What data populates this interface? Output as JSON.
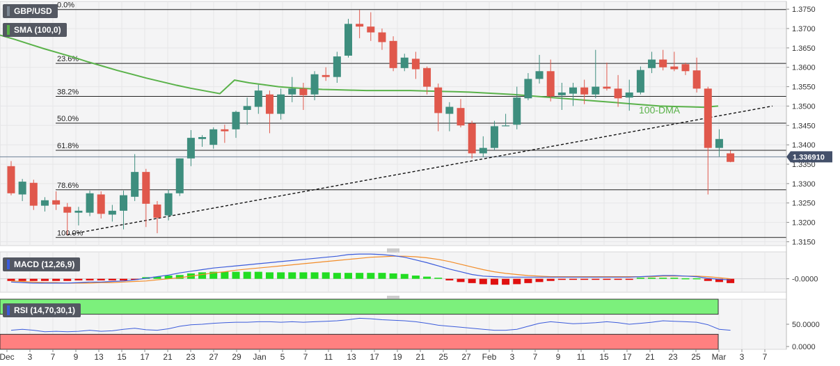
{
  "chart_data": {
    "type": "candlestick",
    "symbol": "GBP/USD",
    "sma_label": "SMA (100,0)",
    "sma_annotation": "100-DMA",
    "current_price_label": "1.336910",
    "current_price": 1.33691,
    "y_ticks": [
      "1.3750",
      "1.3700",
      "1.3650",
      "1.3600",
      "1.3550",
      "1.3500",
      "1.3450",
      "1.3400",
      "1.3350",
      "1.3300",
      "1.3250",
      "1.3200",
      "1.3150"
    ],
    "ylim": [
      1.314,
      1.377
    ],
    "x_ticks": [
      "Dec",
      "3",
      "7",
      "9",
      "13",
      "15",
      "17",
      "21",
      "23",
      "27",
      "29",
      "Jan",
      "5",
      "7",
      "11",
      "13",
      "17",
      "19",
      "21",
      "25",
      "27",
      "Feb",
      "3",
      "7",
      "9",
      "11",
      "15",
      "17",
      "21",
      "23",
      "25",
      "Mar",
      "3",
      "7"
    ],
    "fibonacci": [
      {
        "label": "0.0%",
        "price": 1.3749
      },
      {
        "label": "23.6%",
        "price": 1.361
      },
      {
        "label": "38.2%",
        "price": 1.3525
      },
      {
        "label": "50.0%",
        "price": 1.3456
      },
      {
        "label": "61.8%",
        "price": 1.3386
      },
      {
        "label": "78.6%",
        "price": 1.3284
      },
      {
        "label": "100.0%",
        "price": 1.3161
      }
    ],
    "candles": [
      {
        "o": 1.3345,
        "h": 1.3358,
        "l": 1.327,
        "c": 1.3275
      },
      {
        "o": 1.3272,
        "h": 1.3312,
        "l": 1.3255,
        "c": 1.3305
      },
      {
        "o": 1.3302,
        "h": 1.331,
        "l": 1.3232,
        "c": 1.3243
      },
      {
        "o": 1.3243,
        "h": 1.3265,
        "l": 1.3228,
        "c": 1.3257
      },
      {
        "o": 1.3257,
        "h": 1.328,
        "l": 1.3232,
        "c": 1.3246
      },
      {
        "o": 1.324,
        "h": 1.325,
        "l": 1.3168,
        "c": 1.3225
      },
      {
        "o": 1.3225,
        "h": 1.324,
        "l": 1.3192,
        "c": 1.323
      },
      {
        "o": 1.3225,
        "h": 1.3282,
        "l": 1.3216,
        "c": 1.3275
      },
      {
        "o": 1.3272,
        "h": 1.328,
        "l": 1.321,
        "c": 1.3222
      },
      {
        "o": 1.322,
        "h": 1.3245,
        "l": 1.3202,
        "c": 1.323
      },
      {
        "o": 1.323,
        "h": 1.3282,
        "l": 1.3182,
        "c": 1.327
      },
      {
        "o": 1.3266,
        "h": 1.3376,
        "l": 1.3255,
        "c": 1.333
      },
      {
        "o": 1.333,
        "h": 1.3338,
        "l": 1.3188,
        "c": 1.3248
      },
      {
        "o": 1.3246,
        "h": 1.3255,
        "l": 1.3172,
        "c": 1.3212
      },
      {
        "o": 1.3218,
        "h": 1.3285,
        "l": 1.3205,
        "c": 1.3275
      },
      {
        "o": 1.3275,
        "h": 1.3365,
        "l": 1.3268,
        "c": 1.3365
      },
      {
        "o": 1.3365,
        "h": 1.3438,
        "l": 1.3345,
        "c": 1.3418
      },
      {
        "o": 1.3415,
        "h": 1.3425,
        "l": 1.3395,
        "c": 1.342
      },
      {
        "o": 1.34,
        "h": 1.3445,
        "l": 1.339,
        "c": 1.344
      },
      {
        "o": 1.344,
        "h": 1.3452,
        "l": 1.3405,
        "c": 1.3435
      },
      {
        "o": 1.344,
        "h": 1.3488,
        "l": 1.3418,
        "c": 1.3485
      },
      {
        "o": 1.349,
        "h": 1.3522,
        "l": 1.3452,
        "c": 1.35
      },
      {
        "o": 1.3498,
        "h": 1.3555,
        "l": 1.348,
        "c": 1.354
      },
      {
        "o": 1.353,
        "h": 1.354,
        "l": 1.343,
        "c": 1.348
      },
      {
        "o": 1.348,
        "h": 1.3545,
        "l": 1.3465,
        "c": 1.353
      },
      {
        "o": 1.353,
        "h": 1.3575,
        "l": 1.351,
        "c": 1.3545
      },
      {
        "o": 1.3545,
        "h": 1.356,
        "l": 1.349,
        "c": 1.3528
      },
      {
        "o": 1.353,
        "h": 1.359,
        "l": 1.3515,
        "c": 1.3582
      },
      {
        "o": 1.358,
        "h": 1.36,
        "l": 1.3565,
        "c": 1.3575
      },
      {
        "o": 1.3575,
        "h": 1.364,
        "l": 1.356,
        "c": 1.3628
      },
      {
        "o": 1.363,
        "h": 1.3725,
        "l": 1.3625,
        "c": 1.3712
      },
      {
        "o": 1.3712,
        "h": 1.3748,
        "l": 1.3675,
        "c": 1.3705
      },
      {
        "o": 1.3705,
        "h": 1.3742,
        "l": 1.3668,
        "c": 1.369
      },
      {
        "o": 1.369,
        "h": 1.37,
        "l": 1.3645,
        "c": 1.3665
      },
      {
        "o": 1.3668,
        "h": 1.368,
        "l": 1.359,
        "c": 1.3598
      },
      {
        "o": 1.3598,
        "h": 1.3635,
        "l": 1.359,
        "c": 1.3625
      },
      {
        "o": 1.3622,
        "h": 1.364,
        "l": 1.357,
        "c": 1.3595
      },
      {
        "o": 1.3598,
        "h": 1.3602,
        "l": 1.353,
        "c": 1.355
      },
      {
        "o": 1.3548,
        "h": 1.3558,
        "l": 1.3435,
        "c": 1.3482
      },
      {
        "o": 1.348,
        "h": 1.351,
        "l": 1.3435,
        "c": 1.3498
      },
      {
        "o": 1.3495,
        "h": 1.3518,
        "l": 1.3445,
        "c": 1.345
      },
      {
        "o": 1.3455,
        "h": 1.3462,
        "l": 1.3365,
        "c": 1.3378
      },
      {
        "o": 1.3378,
        "h": 1.3422,
        "l": 1.3368,
        "c": 1.3392
      },
      {
        "o": 1.3392,
        "h": 1.3462,
        "l": 1.3386,
        "c": 1.3448
      },
      {
        "o": 1.345,
        "h": 1.348,
        "l": 1.3448,
        "c": 1.345
      },
      {
        "o": 1.3452,
        "h": 1.355,
        "l": 1.344,
        "c": 1.3522
      },
      {
        "o": 1.352,
        "h": 1.3585,
        "l": 1.3515,
        "c": 1.357
      },
      {
        "o": 1.357,
        "h": 1.3632,
        "l": 1.3558,
        "c": 1.359
      },
      {
        "o": 1.359,
        "h": 1.362,
        "l": 1.3512,
        "c": 1.3525
      },
      {
        "o": 1.3528,
        "h": 1.356,
        "l": 1.349,
        "c": 1.3535
      },
      {
        "o": 1.3532,
        "h": 1.356,
        "l": 1.35,
        "c": 1.3548
      },
      {
        "o": 1.3548,
        "h": 1.3568,
        "l": 1.3505,
        "c": 1.353
      },
      {
        "o": 1.353,
        "h": 1.3645,
        "l": 1.352,
        "c": 1.355
      },
      {
        "o": 1.355,
        "h": 1.3612,
        "l": 1.354,
        "c": 1.3545
      },
      {
        "o": 1.3545,
        "h": 1.358,
        "l": 1.3498,
        "c": 1.352
      },
      {
        "o": 1.3522,
        "h": 1.3568,
        "l": 1.3488,
        "c": 1.3535
      },
      {
        "o": 1.3535,
        "h": 1.3602,
        "l": 1.353,
        "c": 1.3593
      },
      {
        "o": 1.3598,
        "h": 1.364,
        "l": 1.3585,
        "c": 1.362
      },
      {
        "o": 1.362,
        "h": 1.3645,
        "l": 1.3592,
        "c": 1.36
      },
      {
        "o": 1.3602,
        "h": 1.364,
        "l": 1.359,
        "c": 1.3595
      },
      {
        "o": 1.3608,
        "h": 1.3612,
        "l": 1.358,
        "c": 1.359
      },
      {
        "o": 1.3592,
        "h": 1.3625,
        "l": 1.3535,
        "c": 1.3545
      },
      {
        "o": 1.3545,
        "h": 1.355,
        "l": 1.3272,
        "c": 1.3392
      },
      {
        "o": 1.3392,
        "h": 1.344,
        "l": 1.337,
        "c": 1.3415
      },
      {
        "o": 1.3378,
        "h": 1.3385,
        "l": 1.3355,
        "c": 1.3356
      }
    ],
    "sma": [
      1.3683,
      1.3672,
      1.366,
      1.3648,
      1.3637,
      1.3626,
      1.3614,
      1.3603,
      1.3592,
      1.3582,
      1.3572,
      1.3563,
      1.3554,
      1.3546,
      1.3539,
      1.3532,
      1.3567,
      1.356,
      1.3555,
      1.355,
      1.3547,
      1.3545,
      1.3543,
      1.3542,
      1.3541,
      1.354,
      1.354,
      1.354,
      1.354,
      1.3539,
      1.3538,
      1.3537,
      1.3536,
      1.3534,
      1.3532,
      1.353,
      1.3527,
      1.3524,
      1.3521,
      1.3518,
      1.3515,
      1.3512,
      1.3509,
      1.3506,
      1.3503,
      1.35,
      1.3499,
      1.3498,
      1.3497,
      1.35
    ],
    "trendline": {
      "p1": 1.3168,
      "p2": 1.35
    },
    "macd": {
      "label": "MACD (12,26,9)",
      "y_tick": "-0.0000",
      "range": [
        -0.0025,
        0.005
      ],
      "macd": [
        -0.0006,
        -0.0007,
        -0.0008,
        -0.0008,
        -0.0008,
        -0.0008,
        -0.0007,
        -0.0006,
        -0.0006,
        -0.0005,
        -0.0004,
        -0.0002,
        0.0001,
        0.0004,
        0.0007,
        0.0011,
        0.0014,
        0.0017,
        0.002,
        0.0022,
        0.0024,
        0.0026,
        0.0028,
        0.003,
        0.0032,
        0.0034,
        0.0036,
        0.0038,
        0.004,
        0.0042,
        0.0045,
        0.0046,
        0.0046,
        0.0045,
        0.0043,
        0.004,
        0.0035,
        0.003,
        0.0024,
        0.0018,
        0.0013,
        0.0008,
        0.0005,
        0.0004,
        0.0003,
        0.0003,
        0.0003,
        0.0003,
        0.0003,
        0.0003,
        0.0003,
        0.0003,
        0.0003,
        0.0003,
        0.0003,
        0.0003,
        0.0004,
        0.0005,
        0.0006,
        0.0006,
        0.0005,
        0.0004,
        0.0001,
        -0.0001,
        -0.0002
      ],
      "signal": [
        -0.0004,
        -0.0005,
        -0.0006,
        -0.0007,
        -0.0007,
        -0.0008,
        -0.0008,
        -0.0008,
        -0.0007,
        -0.0007,
        -0.0006,
        -0.0005,
        -0.0004,
        -0.0002,
        0.0,
        0.0002,
        0.0005,
        0.0008,
        0.0011,
        0.0013,
        0.0016,
        0.0018,
        0.002,
        0.0022,
        0.0024,
        0.0026,
        0.0028,
        0.003,
        0.0032,
        0.0034,
        0.0036,
        0.0038,
        0.004,
        0.0041,
        0.0042,
        0.0042,
        0.0041,
        0.0039,
        0.0036,
        0.0032,
        0.0027,
        0.0022,
        0.0017,
        0.0013,
        0.001,
        0.0008,
        0.0006,
        0.0005,
        0.0004,
        0.0004,
        0.0004,
        0.0004,
        0.0004,
        0.0004,
        0.0004,
        0.0004,
        0.0004,
        0.0004,
        0.0005,
        0.0005,
        0.0005,
        0.0005,
        0.0004,
        0.0002,
        0.0
      ],
      "histogram": [
        -0.0004,
        -0.0004,
        -0.0004,
        -0.0004,
        -0.0004,
        -0.0004,
        -0.0003,
        -0.0003,
        -0.0003,
        -0.0003,
        -0.0003,
        -0.0002,
        0.0003,
        0.0004,
        0.0006,
        0.0007,
        0.001,
        0.0012,
        0.0013,
        0.0013,
        0.0013,
        0.0013,
        0.0013,
        0.0012,
        0.0012,
        0.0012,
        0.0012,
        0.0012,
        0.0012,
        0.0011,
        0.0011,
        0.0011,
        0.0011,
        0.0011,
        0.001,
        0.0009,
        0.0006,
        0.0004,
        0.0002,
        -0.0003,
        -0.0006,
        -0.0008,
        -0.001,
        -0.0011,
        -0.0011,
        -0.001,
        -0.0008,
        -0.0006,
        -0.0004,
        -0.0002,
        -0.0001,
        -0.0001,
        -0.0001,
        -0.0001,
        -0.0001,
        -0.0001,
        0.0002,
        0.0002,
        0.0002,
        0.0002,
        0.0001,
        0.0001,
        -0.0004,
        -0.0006,
        -0.0008
      ]
    },
    "rsi": {
      "label": "RSI (14,70,30,1)",
      "y_ticks": [
        "50.0000",
        "0.0000"
      ],
      "range": [
        0,
        100
      ],
      "overbought": 70,
      "oversold": 30,
      "values": [
        38,
        40,
        38,
        35,
        36,
        35,
        36,
        38,
        36,
        37,
        40,
        42,
        39,
        38,
        41,
        46,
        49,
        50,
        52,
        53,
        54,
        54,
        55,
        55,
        54,
        55,
        54,
        55,
        56,
        57,
        59,
        62,
        61,
        59,
        58,
        57,
        55,
        52,
        48,
        46,
        44,
        42,
        40,
        38,
        38,
        40,
        46,
        52,
        55,
        53,
        51,
        52,
        53,
        55,
        53,
        50,
        52,
        54,
        57,
        56,
        55,
        54,
        49,
        40,
        38
      ]
    },
    "colors": {
      "up": "#3e8e7e",
      "down": "#e0584c",
      "sma": "#5ab24a",
      "macd": "#3b5bdb",
      "signal": "#f28c28",
      "hist_up": "#22dd22",
      "hist_down": "#e01010",
      "rsi": "#3b5bdb",
      "rsi_ob": "#7cf07c",
      "rsi_os": "#ff8080"
    }
  }
}
